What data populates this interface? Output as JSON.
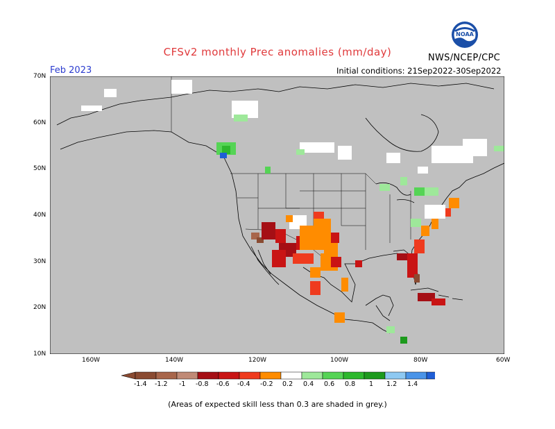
{
  "header": {
    "title": "CFSv2 monthly Prec anomalies (mm/day)",
    "month": "Feb 2023",
    "initial_conditions": "Initial conditions: 21Sep2022-30Sep2022",
    "agency": "NWS/NCEP/CPC",
    "logo_text": "NOAA"
  },
  "map": {
    "region": "North America",
    "lat_labels": [
      "70N",
      "60N",
      "50N",
      "40N",
      "30N",
      "20N",
      "10N"
    ],
    "lon_labels": [
      "160W",
      "140W",
      "120W",
      "100W",
      "80W",
      "60W"
    ],
    "ocean_color": "#c0c0c0",
    "land_color": "#c0c0c0",
    "coast_color": "#000000"
  },
  "colorbar": {
    "labels": [
      "-1.4",
      "-1.2",
      "-1",
      "-0.8",
      "-0.6",
      "-0.4",
      "-0.2",
      "0.2",
      "0.4",
      "0.6",
      "0.8",
      "1",
      "1.2",
      "1.4"
    ],
    "colors": [
      "#8a4b32",
      "#a8664b",
      "#c08a76",
      "#a50f15",
      "#c91414",
      "#ef3b1e",
      "#ff8c00",
      "#ffffff",
      "#9ee89a",
      "#55d455",
      "#2db82d",
      "#1d9a1d",
      "#8ec9f2",
      "#4a94e8",
      "#1f5ed6"
    ]
  },
  "footnote": "(Areas of expected skill less than 0.3 are shaded in grey.)"
}
